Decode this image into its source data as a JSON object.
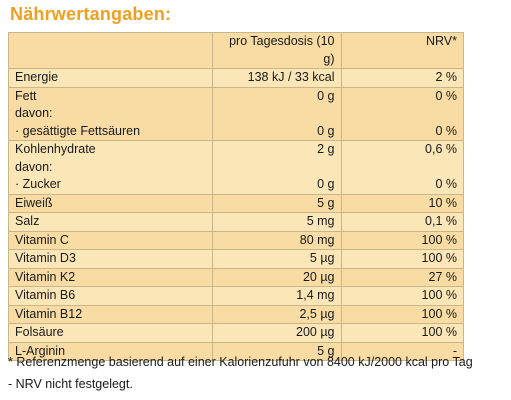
{
  "title": "Nährwertangaben:",
  "header": {
    "col1": "",
    "col2": "pro Tagesdosis (10 g)",
    "col3": "NRV*"
  },
  "rows": [
    {
      "label": [
        "Energie"
      ],
      "amount": [
        "138 kJ / 33 kcal"
      ],
      "nrv": [
        "2 %"
      ]
    },
    {
      "label": [
        "Fett",
        "davon:",
        "· gesättigte Fettsäuren"
      ],
      "amount": [
        "0 g",
        "",
        "0 g"
      ],
      "nrv": [
        "0 %",
        "",
        "0 %"
      ]
    },
    {
      "label": [
        "Kohlenhydrate",
        "davon:",
        "· Zucker"
      ],
      "amount": [
        "2 g",
        "",
        "0 g"
      ],
      "nrv": [
        "0,6 %",
        "",
        "0 %"
      ]
    },
    {
      "label": [
        "Eiweiß"
      ],
      "amount": [
        "5 g"
      ],
      "nrv": [
        "10 %"
      ]
    },
    {
      "label": [
        "Salz"
      ],
      "amount": [
        "5 mg"
      ],
      "nrv": [
        "0,1 %"
      ]
    },
    {
      "label": [
        "Vitamin C"
      ],
      "amount": [
        "80 mg"
      ],
      "nrv": [
        "100 %"
      ]
    },
    {
      "label": [
        "Vitamin D3"
      ],
      "amount": [
        "5 µg"
      ],
      "nrv": [
        "100 %"
      ]
    },
    {
      "label": [
        "Vitamin K2"
      ],
      "amount": [
        "20 µg"
      ],
      "nrv": [
        "27 %"
      ]
    },
    {
      "label": [
        "Vitamin B6"
      ],
      "amount": [
        "1,4 mg"
      ],
      "nrv": [
        "100 %"
      ]
    },
    {
      "label": [
        "Vitamin B12"
      ],
      "amount": [
        "2,5 µg"
      ],
      "nrv": [
        "100 %"
      ]
    },
    {
      "label": [
        "Folsäure"
      ],
      "amount": [
        "200 µg"
      ],
      "nrv": [
        "100 %"
      ]
    },
    {
      "label": [
        "L-Arginin"
      ],
      "amount": [
        "5 g"
      ],
      "nrv": [
        "-"
      ]
    }
  ],
  "footnotes": [
    "* Referenzmenge basierend auf einer Kalorienzufuhr von 8400 kJ/2000 kcal pro Tag",
    "- NRV nicht festgelegt."
  ],
  "colors": {
    "title": "#f0a020",
    "row_light": "#fbe6b8",
    "row_dark": "#f8dca4",
    "border": "#c9b68a"
  }
}
